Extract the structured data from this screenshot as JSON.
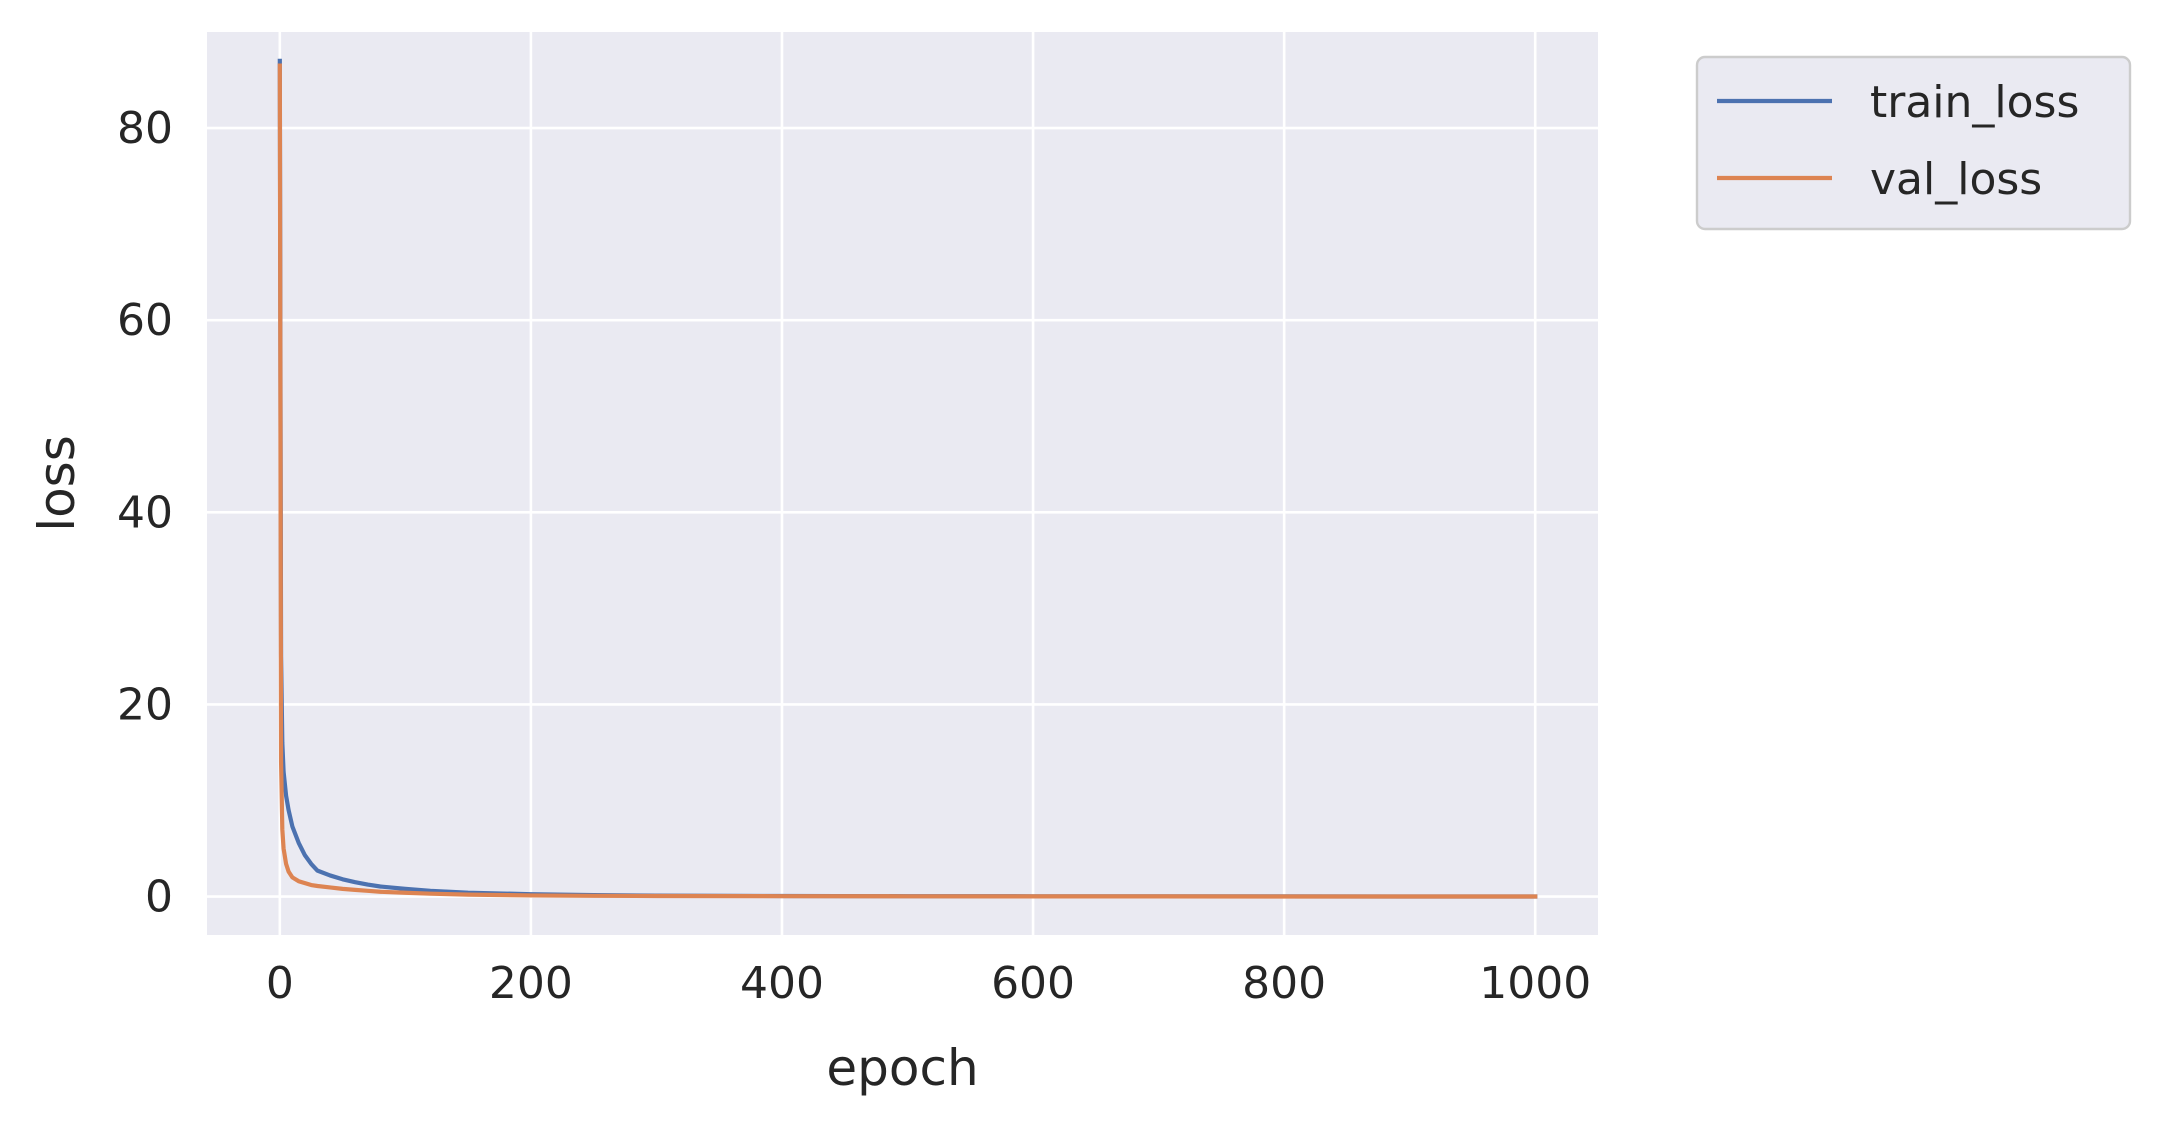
{
  "chart_data": {
    "type": "line",
    "title": "",
    "xlabel": "epoch",
    "ylabel": "loss",
    "xlim": [
      -58,
      1050
    ],
    "ylim": [
      -4,
      90
    ],
    "x_ticks": [
      0,
      200,
      400,
      600,
      800,
      1000
    ],
    "y_ticks": [
      0,
      20,
      40,
      60,
      80
    ],
    "grid": true,
    "legend_position": "outside-top-right",
    "series": [
      {
        "name": "train_loss",
        "color": "#4c72b0",
        "x": [
          0,
          1,
          2,
          3,
          5,
          7,
          10,
          15,
          20,
          25,
          30,
          40,
          50,
          60,
          70,
          80,
          100,
          120,
          150,
          200,
          250,
          300,
          400,
          500,
          600,
          700,
          800,
          900,
          1000
        ],
        "y": [
          87.0,
          25.0,
          16.0,
          13.0,
          10.5,
          9.0,
          7.3,
          5.6,
          4.3,
          3.4,
          2.7,
          2.2,
          1.8,
          1.5,
          1.25,
          1.05,
          0.8,
          0.6,
          0.4,
          0.25,
          0.15,
          0.1,
          0.06,
          0.04,
          0.03,
          0.02,
          0.02,
          0.01,
          0.01
        ]
      },
      {
        "name": "val_loss",
        "color": "#dd8452",
        "x": [
          0,
          1,
          2,
          3,
          5,
          7,
          10,
          15,
          20,
          25,
          30,
          40,
          50,
          60,
          70,
          80,
          100,
          120,
          150,
          200,
          250,
          300,
          400,
          500,
          600,
          700,
          800,
          900,
          1000
        ],
        "y": [
          86.5,
          14.0,
          7.0,
          5.0,
          3.4,
          2.6,
          2.0,
          1.6,
          1.4,
          1.2,
          1.1,
          0.95,
          0.8,
          0.7,
          0.6,
          0.5,
          0.4,
          0.3,
          0.2,
          0.12,
          0.08,
          0.06,
          0.04,
          0.03,
          0.02,
          0.02,
          0.01,
          0.01,
          0.01
        ]
      }
    ]
  }
}
